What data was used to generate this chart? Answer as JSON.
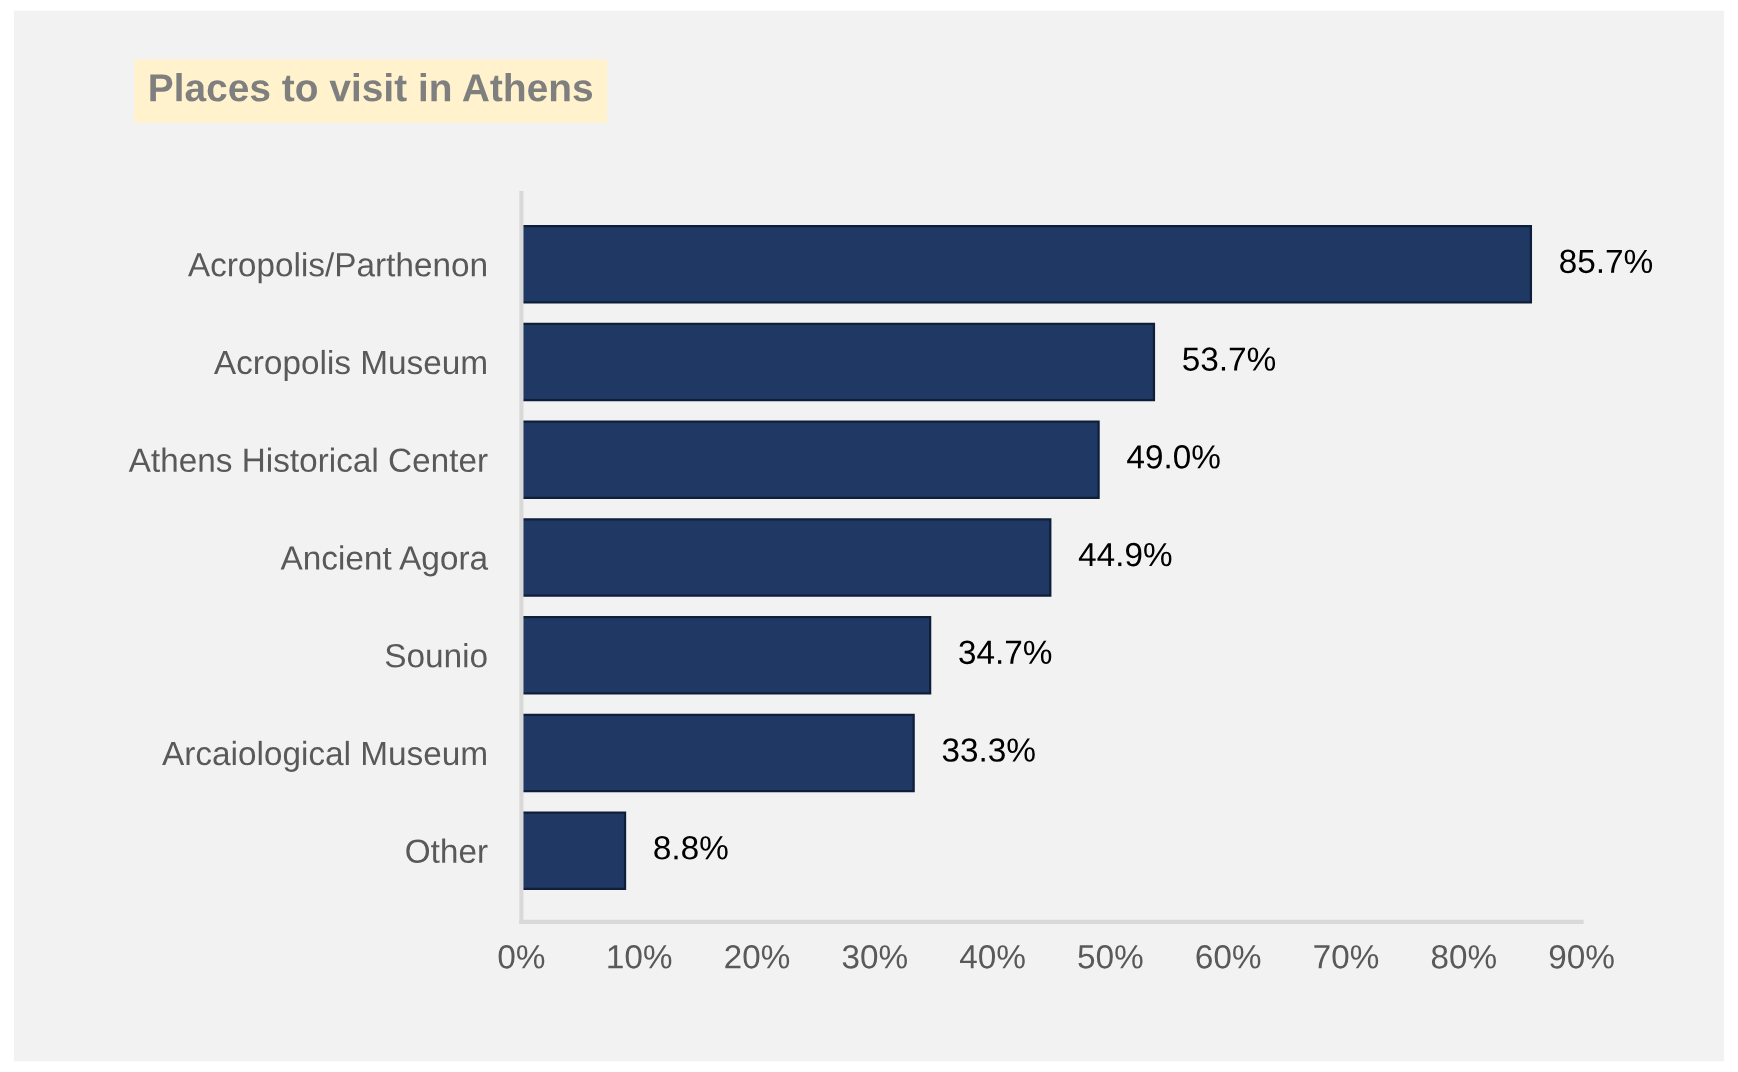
{
  "chart_data": {
    "type": "bar",
    "orientation": "horizontal",
    "title": "Places to visit in Athens",
    "categories": [
      "Acropolis/Parthenon",
      "Acropolis Museum",
      "Athens Historical Center",
      "Ancient Agora",
      "Sounio",
      "Arcaiological Museum",
      "Other"
    ],
    "values": [
      85.7,
      53.7,
      49.0,
      44.9,
      34.7,
      33.3,
      8.8
    ],
    "value_labels": [
      "85.7%",
      "53.7%",
      "49.0%",
      "44.9%",
      "34.7%",
      "33.3%",
      "8.8%"
    ],
    "color": "#1f3864",
    "xlim": [
      0,
      90
    ],
    "xticks": [
      {
        "value": 0,
        "label": "0%"
      },
      {
        "value": 10,
        "label": "10%"
      },
      {
        "value": 20,
        "label": "20%"
      },
      {
        "value": 30,
        "label": "30%"
      },
      {
        "value": 40,
        "label": "40%"
      },
      {
        "value": 50,
        "label": "50%"
      },
      {
        "value": 60,
        "label": "60%"
      },
      {
        "value": 70,
        "label": "70%"
      },
      {
        "value": 80,
        "label": "80%"
      },
      {
        "value": 90,
        "label": "90%"
      }
    ],
    "grid": false,
    "legend": false
  }
}
